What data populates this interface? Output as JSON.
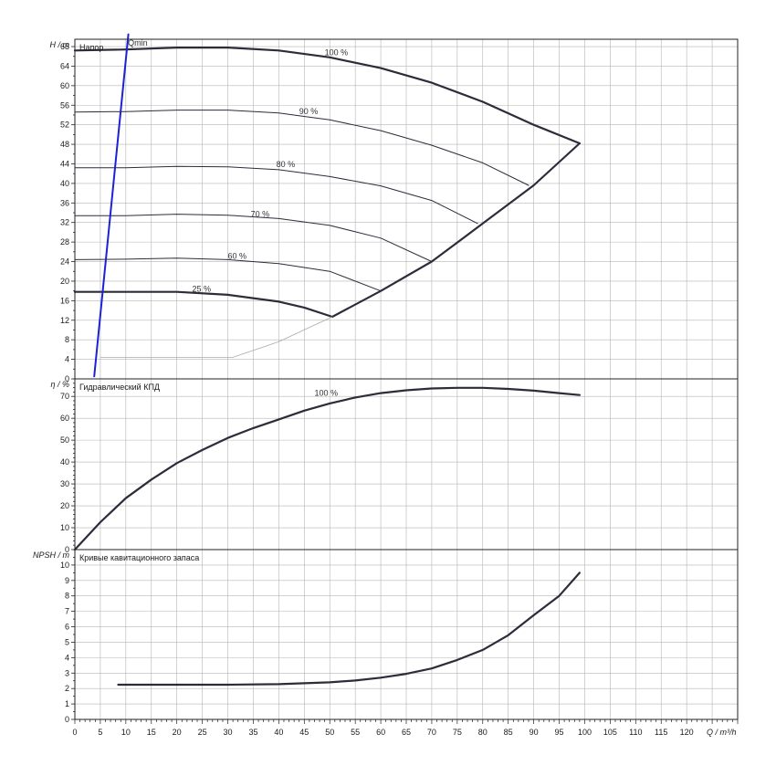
{
  "chart_data": {
    "type": "line",
    "x_axis": {
      "label": "Q / m³/h",
      "min": 0,
      "max": 130,
      "ticks": [
        0,
        5,
        10,
        15,
        20,
        25,
        30,
        35,
        40,
        45,
        50,
        55,
        60,
        65,
        70,
        75,
        80,
        85,
        90,
        95,
        100,
        105,
        110,
        115,
        120
      ],
      "minor_step": 1
    },
    "colors": {
      "curve": "#2b2d3a",
      "qmin": "#1a22d8",
      "grid": "#b4b4b4",
      "guide": "#aaaaaa"
    },
    "panels": [
      {
        "id": "head",
        "title": "Напор",
        "ylabel": "H / m",
        "ylim": [
          0,
          69.5
        ],
        "yticks": [
          0,
          4,
          8,
          12,
          16,
          20,
          24,
          28,
          32,
          36,
          40,
          44,
          48,
          52,
          56,
          60,
          64,
          68
        ],
        "minor_step": 2,
        "series": [
          {
            "name": "100 %",
            "label": "100 %",
            "label_at": [
              49,
              66.2
            ],
            "width": 2.2,
            "x": [
              0,
              10,
              20,
              30,
              40,
              50,
              60,
              70,
              80,
              90,
              99
            ],
            "y": [
              67.2,
              67.4,
              67.8,
              67.8,
              67.2,
              65.8,
              63.6,
              60.6,
              56.7,
              52.0,
              48.2
            ]
          },
          {
            "name": "90 %",
            "label": "90 %",
            "label_at": [
              44,
              54.2
            ],
            "width": 1,
            "x": [
              0,
              10,
              20,
              30,
              40,
              50,
              60,
              70,
              80,
              89
            ],
            "y": [
              54.6,
              54.7,
              55.0,
              55.0,
              54.4,
              53.0,
              50.8,
              47.8,
              44.2,
              39.6
            ]
          },
          {
            "name": "80 %",
            "label": "80 %",
            "label_at": [
              39.5,
              43.3
            ],
            "width": 1,
            "x": [
              0,
              10,
              20,
              30,
              40,
              50,
              60,
              70,
              79
            ],
            "y": [
              43.2,
              43.2,
              43.5,
              43.4,
              42.8,
              41.4,
              39.5,
              36.5,
              31.8
            ]
          },
          {
            "name": "70 %",
            "label": "70 %",
            "label_at": [
              34.5,
              33.2
            ],
            "width": 1,
            "x": [
              0,
              10,
              20,
              30,
              40,
              50,
              60,
              70
            ],
            "y": [
              33.4,
              33.4,
              33.7,
              33.5,
              32.8,
              31.4,
              28.8,
              24.0
            ]
          },
          {
            "name": "60 %",
            "label": "60 %",
            "label_at": [
              30,
              24.6
            ],
            "width": 1,
            "x": [
              0,
              10,
              20,
              30,
              40,
              50,
              60
            ],
            "y": [
              24.4,
              24.5,
              24.7,
              24.4,
              23.6,
              22.0,
              18.0
            ]
          },
          {
            "name": "25 %",
            "label": "25 %",
            "label_at": [
              23,
              17.8
            ],
            "width": 2.2,
            "x": [
              0,
              10,
              20,
              30,
              40,
              45,
              50.5
            ],
            "y": [
              17.8,
              17.8,
              17.8,
              17.2,
              15.8,
              14.6,
              12.7
            ]
          },
          {
            "name": "max envelope",
            "label": "",
            "width": 2.2,
            "x": [
              50.5,
              60,
              70,
              80,
              90,
              99
            ],
            "y": [
              12.7,
              18.0,
              24.0,
              31.8,
              39.6,
              48.2
            ]
          },
          {
            "name": "lower envelope",
            "label": "",
            "width": 0.8,
            "style": "guide",
            "x": [
              31,
              40,
              50.5
            ],
            "y": [
              4.4,
              7.6,
              12.7
            ]
          },
          {
            "name": "min flow base",
            "label": "",
            "width": 0.8,
            "style": "guide",
            "x": [
              5,
              31
            ],
            "y": [
              4.4,
              4.4
            ]
          },
          {
            "name": "Qmin",
            "label": "Qmin",
            "label_at": [
              10.4,
              68.2
            ],
            "width": 2,
            "style": "qmin",
            "x": [
              3.8,
              10.5
            ],
            "y": [
              0.5,
              70.5
            ]
          }
        ]
      },
      {
        "id": "efficiency",
        "title": "Гидравлический КПД",
        "ylabel": "η / %",
        "ylim": [
          0,
          78
        ],
        "yticks": [
          0,
          10,
          20,
          30,
          40,
          50,
          60,
          70
        ],
        "minor_step": 2,
        "series": [
          {
            "name": "100 %",
            "label": "100 %",
            "label_at": [
              47,
              70.3
            ],
            "width": 2.2,
            "x": [
              0,
              5,
              10,
              15,
              20,
              25,
              30,
              35,
              40,
              45,
              50,
              55,
              60,
              65,
              70,
              75,
              80,
              85,
              90,
              95,
              99
            ],
            "y": [
              0,
              12.5,
              23.5,
              32.0,
              39.5,
              45.5,
              51.0,
              55.5,
              59.5,
              63.5,
              66.8,
              69.5,
              71.5,
              72.8,
              73.6,
              73.9,
              73.9,
              73.4,
              72.6,
              71.5,
              70.6
            ]
          }
        ]
      },
      {
        "id": "npsh",
        "title": "Кривые кавитационного запаса",
        "ylabel": "NPSH / m",
        "ylim": [
          0,
          11
        ],
        "yticks": [
          0,
          1,
          2,
          3,
          4,
          5,
          6,
          7,
          8,
          9,
          10
        ],
        "minor_step": 0.5,
        "series": [
          {
            "name": "NPSH",
            "label": "",
            "width": 2.2,
            "x": [
              8.5,
              20,
              30,
              40,
              50,
              55,
              60,
              65,
              70,
              75,
              80,
              85,
              90,
              95,
              99
            ],
            "y": [
              2.25,
              2.25,
              2.25,
              2.28,
              2.4,
              2.52,
              2.7,
              2.95,
              3.3,
              3.85,
              4.5,
              5.45,
              6.75,
              8.0,
              9.5
            ]
          }
        ]
      }
    ]
  }
}
